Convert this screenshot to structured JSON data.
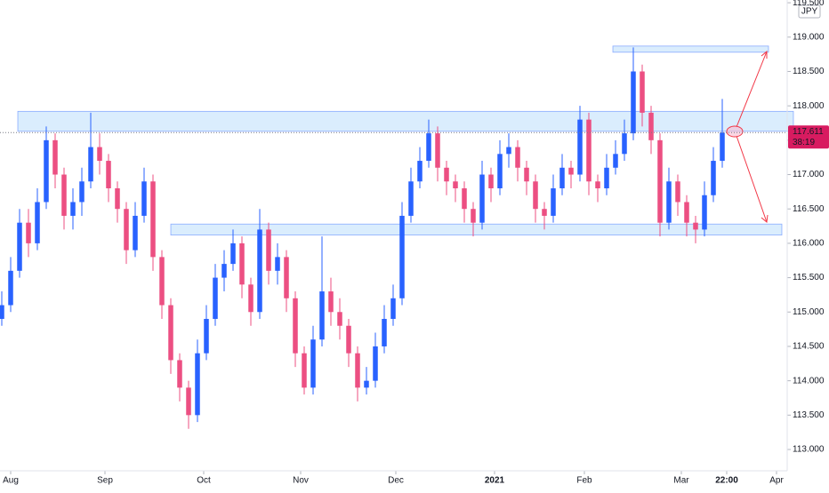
{
  "chart_data": {
    "type": "candlestick",
    "currency": "JPY",
    "up_color": "#2962ff",
    "down_color": "#ec4f82",
    "xlim": [
      -0.2,
      88.3
    ],
    "ylim": [
      112.69,
      119.54
    ],
    "xticks": [
      {
        "value": 1,
        "label": "Aug"
      },
      {
        "value": 11.6,
        "label": "Sep"
      },
      {
        "value": 22.7,
        "label": "Oct"
      },
      {
        "value": 33.6,
        "label": "Nov"
      },
      {
        "value": 44.3,
        "label": "Dec"
      },
      {
        "value": 55.4,
        "label": "2021"
      },
      {
        "value": 65.5,
        "label": "Feb"
      },
      {
        "value": 76.4,
        "label": "Mar"
      },
      {
        "value": 81.5,
        "label": "22:00"
      },
      {
        "value": 87.1,
        "label": "Apr"
      }
    ],
    "yticks": [
      {
        "value": 113,
        "label": "113.000"
      },
      {
        "value": 113.5,
        "label": "113.500"
      },
      {
        "value": 114,
        "label": "114.000"
      },
      {
        "value": 114.5,
        "label": "114.500"
      },
      {
        "value": 115,
        "label": "115.000"
      },
      {
        "value": 115.5,
        "label": "115.500"
      },
      {
        "value": 116,
        "label": "116.000"
      },
      {
        "value": 116.5,
        "label": "116.500"
      },
      {
        "value": 117,
        "label": "117.000"
      },
      {
        "value": 117.5,
        "label": "117.500"
      },
      {
        "value": 118,
        "label": "118.000"
      },
      {
        "value": 118.5,
        "label": "118.500"
      },
      {
        "value": 119,
        "label": "119.000"
      },
      {
        "value": 119.5,
        "label": "119.500"
      }
    ],
    "last_price": 117.611,
    "countdown": "38:19",
    "zones": [
      {
        "from": 1.8,
        "to": 89.0,
        "top": 117.92,
        "bottom": 117.63
      },
      {
        "from": 19,
        "to": 87.7,
        "top": 116.28,
        "bottom": 116.12
      },
      {
        "from": 68.7,
        "to": 86.2,
        "top": 118.87,
        "bottom": 118.78
      }
    ],
    "candles": [
      [
        114.9,
        115.3,
        114.8,
        115.1
      ],
      [
        115.1,
        115.8,
        115.0,
        115.6
      ],
      [
        115.6,
        116.5,
        115.5,
        116.3
      ],
      [
        116.3,
        116.5,
        115.8,
        116.0
      ],
      [
        116.0,
        116.8,
        115.9,
        116.6
      ],
      [
        116.6,
        117.7,
        116.5,
        117.5
      ],
      [
        117.5,
        117.6,
        116.8,
        117.0
      ],
      [
        117.0,
        117.1,
        116.2,
        116.4
      ],
      [
        116.4,
        116.8,
        116.2,
        116.6
      ],
      [
        116.6,
        117.1,
        116.4,
        116.9
      ],
      [
        116.9,
        117.9,
        116.8,
        117.4
      ],
      [
        117.4,
        117.6,
        117.0,
        117.2
      ],
      [
        117.2,
        117.3,
        116.6,
        116.8
      ],
      [
        116.8,
        116.9,
        116.3,
        116.5
      ],
      [
        116.5,
        116.6,
        115.7,
        115.9
      ],
      [
        115.9,
        116.6,
        115.8,
        116.4
      ],
      [
        116.4,
        117.1,
        116.3,
        116.9
      ],
      [
        116.9,
        117.0,
        115.6,
        115.8
      ],
      [
        115.8,
        115.9,
        114.9,
        115.1
      ],
      [
        115.1,
        115.2,
        114.1,
        114.3
      ],
      [
        114.3,
        114.4,
        113.7,
        113.9
      ],
      [
        113.9,
        114.0,
        113.3,
        113.5
      ],
      [
        113.5,
        114.6,
        113.4,
        114.4
      ],
      [
        114.4,
        115.1,
        114.3,
        114.9
      ],
      [
        114.9,
        115.7,
        114.8,
        115.5
      ],
      [
        115.5,
        115.9,
        115.3,
        115.7
      ],
      [
        115.7,
        116.2,
        115.6,
        116.0
      ],
      [
        116.0,
        116.1,
        115.2,
        115.4
      ],
      [
        115.4,
        115.5,
        114.8,
        115.0
      ],
      [
        115.0,
        116.5,
        114.9,
        116.2
      ],
      [
        116.2,
        116.3,
        115.4,
        115.6
      ],
      [
        115.6,
        116.0,
        115.4,
        115.8
      ],
      [
        115.8,
        115.9,
        115.0,
        115.2
      ],
      [
        115.2,
        115.3,
        114.2,
        114.4
      ],
      [
        114.4,
        114.5,
        113.8,
        113.9
      ],
      [
        113.9,
        114.8,
        113.8,
        114.6
      ],
      [
        114.6,
        116.1,
        114.5,
        115.3
      ],
      [
        115.3,
        115.5,
        114.8,
        115.0
      ],
      [
        115.0,
        115.2,
        114.6,
        114.8
      ],
      [
        114.8,
        114.9,
        114.2,
        114.4
      ],
      [
        114.4,
        114.5,
        113.7,
        113.9
      ],
      [
        113.9,
        114.2,
        113.8,
        114.0
      ],
      [
        114.0,
        114.7,
        113.9,
        114.5
      ],
      [
        114.5,
        115.1,
        114.4,
        114.9
      ],
      [
        114.9,
        115.4,
        114.8,
        115.2
      ],
      [
        115.2,
        116.6,
        115.1,
        116.4
      ],
      [
        116.4,
        117.1,
        116.3,
        116.9
      ],
      [
        116.9,
        117.4,
        116.8,
        117.2
      ],
      [
        117.2,
        117.8,
        117.1,
        117.6
      ],
      [
        117.6,
        117.7,
        116.9,
        117.1
      ],
      [
        117.1,
        117.2,
        116.7,
        116.9
      ],
      [
        116.9,
        117.0,
        116.6,
        116.8
      ],
      [
        116.8,
        116.9,
        116.3,
        116.5
      ],
      [
        116.5,
        116.6,
        116.1,
        116.3
      ],
      [
        116.3,
        117.2,
        116.2,
        117.0
      ],
      [
        117.0,
        117.1,
        116.6,
        116.8
      ],
      [
        116.8,
        117.5,
        116.7,
        117.3
      ],
      [
        117.3,
        117.6,
        117.1,
        117.4
      ],
      [
        117.4,
        117.5,
        116.9,
        117.1
      ],
      [
        117.1,
        117.2,
        116.7,
        116.9
      ],
      [
        116.9,
        117.0,
        116.3,
        116.5
      ],
      [
        116.5,
        116.6,
        116.2,
        116.4
      ],
      [
        116.4,
        117.0,
        116.3,
        116.8
      ],
      [
        116.8,
        117.3,
        116.7,
        117.1
      ],
      [
        117.1,
        117.2,
        116.8,
        117.0
      ],
      [
        117.0,
        118.0,
        116.9,
        117.8
      ],
      [
        117.8,
        117.9,
        116.7,
        116.9
      ],
      [
        116.9,
        117.0,
        116.6,
        116.8
      ],
      [
        116.8,
        117.3,
        116.7,
        117.1
      ],
      [
        117.1,
        117.5,
        117.0,
        117.3
      ],
      [
        117.3,
        117.8,
        117.2,
        117.6
      ],
      [
        117.6,
        118.85,
        117.5,
        118.5
      ],
      [
        118.5,
        118.6,
        117.7,
        117.9
      ],
      [
        117.9,
        118.0,
        117.3,
        117.5
      ],
      [
        117.5,
        117.6,
        116.1,
        116.3
      ],
      [
        116.3,
        117.1,
        116.2,
        116.9
      ],
      [
        116.9,
        117.0,
        116.4,
        116.6
      ],
      [
        116.6,
        116.7,
        116.1,
        116.3
      ],
      [
        116.3,
        116.4,
        116.0,
        116.2
      ],
      [
        116.2,
        116.9,
        116.1,
        116.7
      ],
      [
        116.7,
        117.4,
        116.6,
        117.2
      ],
      [
        117.2,
        118.1,
        117.1,
        117.611
      ]
    ]
  }
}
